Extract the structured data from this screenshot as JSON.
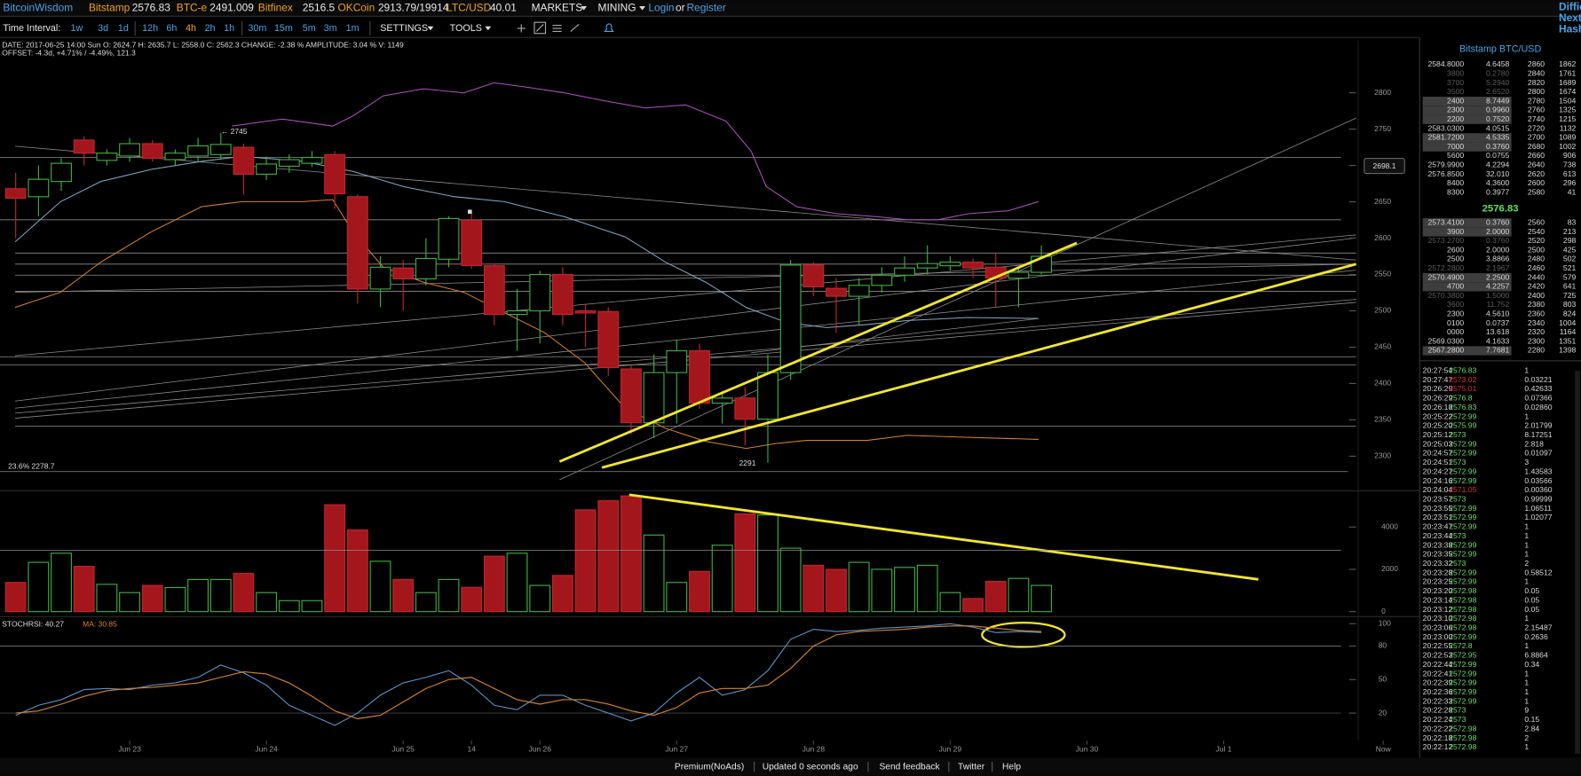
{
  "nav": {
    "brand": "BitcoinWisdom",
    "tickers": [
      {
        "name": "Bitstamp",
        "price": "2576.83"
      },
      {
        "name": "BTC-e",
        "price": "2491.009"
      },
      {
        "name": "Bitfinex",
        "price": "2516.5"
      },
      {
        "name": "OKCoin",
        "price": "2913.79/19914"
      },
      {
        "name": "LTC/USD",
        "price": "40.01"
      }
    ],
    "menus": [
      "MARKETS",
      "MINING"
    ],
    "login": "Login",
    "or": "or",
    "register": "Register",
    "side": [
      "Diffic",
      "Next:",
      "Hash"
    ]
  },
  "toolbar": {
    "label": "Time Interval:",
    "intervals": [
      "1w",
      "3d",
      "1d",
      "12h",
      "6h",
      "4h",
      "2h",
      "1h",
      "30m",
      "15m",
      "5m",
      "3m",
      "1m"
    ],
    "active": 5,
    "settings": "SETTINGS",
    "tools": "TOOLS"
  },
  "info": {
    "line1": "DATE: 2017-06-25 14:00 Sun   O: 2624.7   H: 2635.7   L: 2558.0   C: 2562.3   CHANGE: -2.38 %   AMPLITUDE: 3.04 %   V: 1149",
    "line2": "OFFSET: -4.3d, +4.71% / -4.49%, 121.3"
  },
  "chart": {
    "type": "candlestick",
    "xlim": [
      -0.6,
      58.9
    ],
    "ylim": [
      2276,
      2872
    ],
    "yticks": [
      2300,
      2350,
      2400,
      2450,
      2500,
      2550,
      2600,
      2650,
      2700,
      2750,
      2800
    ],
    "xticks": [
      {
        "value": 5,
        "label": "Jun 23"
      },
      {
        "value": 11,
        "label": "Jun 24"
      },
      {
        "value": 17,
        "label": "Jun 25"
      },
      {
        "value": 20,
        "label": "14"
      },
      {
        "value": 23,
        "label": "Jun 26"
      },
      {
        "value": 29,
        "label": "Jun 27"
      },
      {
        "value": 35,
        "label": "Jun 28"
      },
      {
        "value": 41,
        "label": "Jun 29"
      },
      {
        "value": 47,
        "label": "Jun 30"
      },
      {
        "value": 53,
        "label": "Jul 1"
      },
      {
        "value": 60,
        "label": "Now"
      }
    ],
    "up_color": "#3fae3f",
    "down_color": "#a3161c",
    "open": [
      2668,
      2657,
      2678,
      2735,
      2707,
      2713,
      2730,
      2708,
      2713,
      2715,
      2725,
      2688,
      2699,
      2703,
      2715,
      2657,
      2530,
      2559,
      2544,
      2571,
      2624.7,
      2562,
      2495,
      2500,
      2550,
      2500,
      2499,
      2420,
      2346,
      2415,
      2445,
      2373,
      2380,
      2351,
      2415,
      2563,
      2531,
      2520,
      2535,
      2549,
      2559,
      2562,
      2567,
      2560,
      2545,
      2553
    ],
    "high": [
      2690,
      2700,
      2710,
      2740,
      2722,
      2738,
      2735,
      2722,
      2738,
      2745,
      2730,
      2712,
      2715,
      2720,
      2720,
      2660,
      2575,
      2570,
      2600,
      2630,
      2635.7,
      2565,
      2530,
      2555,
      2560,
      2510,
      2505,
      2425,
      2440,
      2460,
      2455,
      2390,
      2395,
      2440,
      2570,
      2567,
      2545,
      2545,
      2560,
      2575,
      2590,
      2575,
      2572,
      2580,
      2560,
      2590
    ],
    "low": [
      2600,
      2630,
      2665,
      2700,
      2700,
      2705,
      2705,
      2700,
      2705,
      2708,
      2660,
      2680,
      2690,
      2698,
      2640,
      2510,
      2505,
      2500,
      2535,
      2560,
      2558,
      2480,
      2445,
      2455,
      2480,
      2450,
      2410,
      2330,
      2325,
      2345,
      2365,
      2345,
      2315,
      2291,
      2405,
      2520,
      2470,
      2480,
      2525,
      2540,
      2550,
      2555,
      2545,
      2505,
      2505,
      2550
    ],
    "close": [
      2655,
      2681,
      2703,
      2717,
      2717,
      2730,
      2710,
      2717,
      2727,
      2729,
      2688,
      2702,
      2708,
      2711,
      2661,
      2530,
      2560,
      2544,
      2572,
      2627,
      2562.3,
      2495,
      2500,
      2550,
      2495,
      2497,
      2422,
      2346,
      2415,
      2445,
      2373,
      2380,
      2351,
      2415,
      2563,
      2533,
      2520,
      2535,
      2549,
      2559,
      2565,
      2567,
      2559,
      2545,
      2553,
      2575
    ],
    "annotations": {
      "high": "← 2745",
      "low": "2291",
      "fib": "23.6% 2278.7",
      "tag": "2698.1"
    },
    "volume": {
      "ylim": [
        0,
        5667
      ],
      "yticks": [
        0,
        2000,
        4000
      ],
      "values": [
        1380,
        2330,
        2760,
        2140,
        1290,
        900,
        1240,
        1140,
        1520,
        1520,
        1810,
        900,
        520,
        520,
        5050,
        3860,
        2380,
        1520,
        900,
        1520,
        1149,
        2620,
        2760,
        1240,
        1710,
        4810,
        5240,
        5470,
        3620,
        1380,
        1900,
        3140,
        4620,
        4570,
        3000,
        2190,
        2000,
        2330,
        2000,
        2090,
        2190,
        900,
        620,
        1430,
        1570,
        1240
      ]
    },
    "stochrsi": {
      "label": "STOCHRSI: 40.27",
      "ma_label": "MA: 30.85",
      "k_color": "#5b8fc7",
      "ma_color": "#d9822b",
      "ylim": [
        -10,
        105.4
      ],
      "yticks": [
        20,
        50,
        80,
        100
      ],
      "k": [
        18,
        27,
        32,
        41,
        42,
        41,
        45,
        47,
        52,
        63,
        56,
        45,
        27,
        18,
        9,
        20,
        36,
        47,
        52,
        58,
        45,
        27,
        23,
        36,
        36,
        27,
        20,
        13,
        20,
        38,
        52,
        36,
        41,
        58,
        86,
        95,
        93,
        94,
        96,
        97,
        98,
        100,
        97,
        92,
        93,
        92
      ],
      "ma": [
        20,
        22,
        28,
        35,
        40,
        42,
        43,
        45,
        47,
        52,
        57,
        55,
        47,
        35,
        22,
        15,
        18,
        30,
        42,
        50,
        52,
        42,
        32,
        28,
        32,
        32,
        28,
        22,
        18,
        25,
        38,
        42,
        42,
        45,
        60,
        80,
        90,
        93,
        94,
        95,
        97,
        98,
        98,
        96,
        94,
        93
      ]
    }
  },
  "orderbook": {
    "title": "Bitstamp BTC/USD",
    "mid": "2576.83",
    "asks": [
      {
        "cells": [
          "2584.8000",
          "4.6458",
          "2860",
          "1862"
        ]
      },
      {
        "cells": [
          "3800",
          "0.2780",
          "2840",
          "1761"
        ],
        "style": "dim"
      },
      {
        "cells": [
          "3700",
          "5.2940",
          "2820",
          "1689"
        ],
        "style": "dim"
      },
      {
        "cells": [
          "3500",
          "2.6520",
          "2800",
          "1674"
        ],
        "style": "dim"
      },
      {
        "cells": [
          "2400",
          "8.7449",
          "2780",
          "1504"
        ],
        "style": "hl"
      },
      {
        "cells": [
          "2300",
          "0.9960",
          "2760",
          "1325"
        ],
        "style": "hl"
      },
      {
        "cells": [
          "2200",
          "0.7520",
          "2740",
          "1215"
        ],
        "style": "hl"
      },
      {
        "cells": [
          "2583.0300",
          "4.0515",
          "2720",
          "1132"
        ]
      },
      {
        "cells": [
          "2581.7200",
          "4.5335",
          "2700",
          "1089"
        ],
        "style": "hl"
      },
      {
        "cells": [
          "7000",
          "0.3760",
          "2680",
          "1002"
        ],
        "style": "hl"
      },
      {
        "cells": [
          "5600",
          "0.0755",
          "2660",
          "906"
        ]
      },
      {
        "cells": [
          "2579.9900",
          "4.2294",
          "2640",
          "738"
        ]
      },
      {
        "cells": [
          "2576.8500",
          "32.010",
          "2620",
          "613"
        ]
      },
      {
        "cells": [
          "8400",
          "4.3600",
          "2600",
          "296"
        ]
      },
      {
        "cells": [
          "8300",
          "0.3977",
          "2580",
          "41"
        ]
      }
    ],
    "bids": [
      {
        "cells": [
          "2573.4100",
          "0.3760",
          "2560",
          "83"
        ],
        "style": "hl"
      },
      {
        "cells": [
          "3900",
          "2.0000",
          "2540",
          "213"
        ],
        "style": "hl"
      },
      {
        "cells": [
          "2573.2700",
          "0.3760",
          "2520",
          "298"
        ],
        "style": "dim"
      },
      {
        "cells": [
          "2600",
          "2.0000",
          "2500",
          "425"
        ]
      },
      {
        "cells": [
          "2500",
          "3.8866",
          "2480",
          "502"
        ]
      },
      {
        "cells": [
          "2572.2800",
          "2.1967",
          "2460",
          "521"
        ],
        "style": "dim"
      },
      {
        "cells": [
          "2570.4900",
          "2.2500",
          "2440",
          "579"
        ],
        "style": "hl"
      },
      {
        "cells": [
          "4700",
          "4.2257",
          "2420",
          "641"
        ],
        "style": "hl"
      },
      {
        "cells": [
          "2570.3800",
          "1.5000",
          "2400",
          "725"
        ],
        "style": "dim"
      },
      {
        "cells": [
          "3600",
          "11.752",
          "2380",
          "803"
        ],
        "style": "dim"
      },
      {
        "cells": [
          "2300",
          "4.5610",
          "2360",
          "824"
        ]
      },
      {
        "cells": [
          "0100",
          "0.0737",
          "2340",
          "1004"
        ]
      },
      {
        "cells": [
          "0000",
          "13.618",
          "2320",
          "1164"
        ]
      },
      {
        "cells": [
          "2569.0300",
          "4.1633",
          "2300",
          "1351"
        ]
      },
      {
        "cells": [
          "2567.2800",
          "7.7681",
          "2280",
          "1398"
        ],
        "style": "hl"
      }
    ]
  },
  "trades": [
    {
      "t": "20:27:54",
      "p": "2576.83",
      "a": "1"
    },
    {
      "t": "20:27:47",
      "p": "2573.02",
      "a": "0.03221",
      "color": "#e03030"
    },
    {
      "t": "20:26:29",
      "p": "2575.01",
      "a": "0.42633",
      "color": "#e03030"
    },
    {
      "t": "20:26:29",
      "p": "2576.8",
      "a": "0.07366"
    },
    {
      "t": "20:26:18",
      "p": "2576.83",
      "a": "0.02860"
    },
    {
      "t": "20:25:22",
      "p": "2572.99",
      "a": "1"
    },
    {
      "t": "20:25:20",
      "p": "2575.99",
      "a": "2.01799"
    },
    {
      "t": "20:25:12",
      "p": "2573",
      "a": "8.17251"
    },
    {
      "t": "20:25:03",
      "p": "2572.99",
      "a": "2.818"
    },
    {
      "t": "20:24:57",
      "p": "2572.99",
      "a": "0.01097"
    },
    {
      "t": "20:24:51",
      "p": "2573",
      "a": "3"
    },
    {
      "t": "20:24:27",
      "p": "2572.99",
      "a": "1.43583"
    },
    {
      "t": "20:24:16",
      "p": "2572.99",
      "a": "0.03566"
    },
    {
      "t": "20:24:04",
      "p": "2571.05",
      "a": "0.00360",
      "color": "#e03030"
    },
    {
      "t": "20:23:57",
      "p": "2573",
      "a": "0.99999"
    },
    {
      "t": "20:23:55",
      "p": "2572.99",
      "a": "1.06511"
    },
    {
      "t": "20:23:51",
      "p": "2572.99",
      "a": "1.02077"
    },
    {
      "t": "20:23:47",
      "p": "2572.99",
      "a": "1"
    },
    {
      "t": "20:23:44",
      "p": "2573",
      "a": "1"
    },
    {
      "t": "20:23:38",
      "p": "2572.99",
      "a": "1"
    },
    {
      "t": "20:23:35",
      "p": "2572.99",
      "a": "1"
    },
    {
      "t": "20:23:32",
      "p": "2573",
      "a": "2"
    },
    {
      "t": "20:23:28",
      "p": "2572.99",
      "a": "0.58512"
    },
    {
      "t": "20:23:25",
      "p": "2572.99",
      "a": "1"
    },
    {
      "t": "20:23:20",
      "p": "2572.98",
      "a": "0.05"
    },
    {
      "t": "20:23:14",
      "p": "2572.98",
      "a": "0.05"
    },
    {
      "t": "20:23:12",
      "p": "2572.98",
      "a": "0.05"
    },
    {
      "t": "20:23:10",
      "p": "2572.98",
      "a": "1"
    },
    {
      "t": "20:23:06",
      "p": "2572.98",
      "a": "2.15487"
    },
    {
      "t": "20:23:00",
      "p": "2572.99",
      "a": "0.2636"
    },
    {
      "t": "20:22:55",
      "p": "2572.8",
      "a": "1"
    },
    {
      "t": "20:22:53",
      "p": "2572.95",
      "a": "6.8864"
    },
    {
      "t": "20:22:44",
      "p": "2572.99",
      "a": "0.34"
    },
    {
      "t": "20:22:41",
      "p": "2572.99",
      "a": "1"
    },
    {
      "t": "20:22:39",
      "p": "2572.99",
      "a": "1"
    },
    {
      "t": "20:22:36",
      "p": "2572.99",
      "a": "1"
    },
    {
      "t": "20:22:33",
      "p": "2572.99",
      "a": "1"
    },
    {
      "t": "20:22:28",
      "p": "2573",
      "a": "9"
    },
    {
      "t": "20:22:24",
      "p": "2573",
      "a": "0.15"
    },
    {
      "t": "20:22:22",
      "p": "2572.98",
      "a": "2.84"
    },
    {
      "t": "20:22:18",
      "p": "2572.98",
      "a": "2"
    },
    {
      "t": "20:22:12",
      "p": "2572.98",
      "a": "1"
    }
  ],
  "footer": {
    "premium": "Premium(NoAds)",
    "updated": "Updated 0 seconds ago",
    "feedback": "Send feedback",
    "twitter": "Twitter",
    "help": "Help"
  }
}
